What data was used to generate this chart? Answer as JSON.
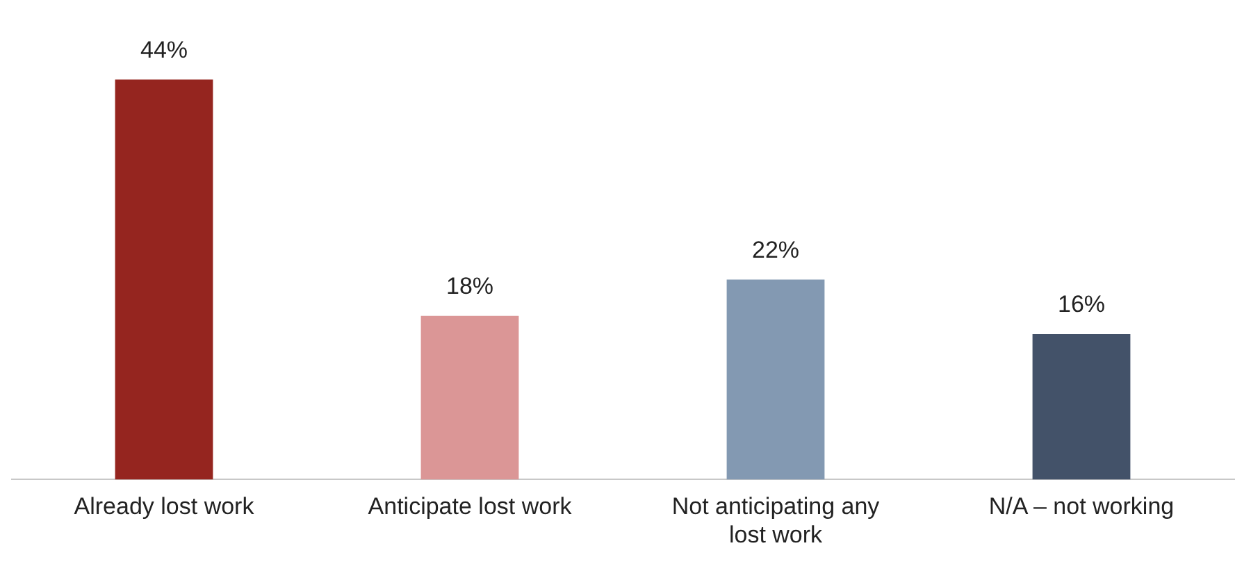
{
  "chart_data": {
    "type": "bar",
    "categories": [
      "Already lost work",
      "Anticipate lost work",
      "Not anticipating any lost work",
      "N/A – not working"
    ],
    "values": [
      44,
      18,
      22,
      16
    ],
    "colors": [
      "#95251f",
      "#db9696",
      "#8399b2",
      "#435269"
    ],
    "value_labels": [
      "44%",
      "18%",
      "22%",
      "16%"
    ],
    "grid": false,
    "legend": false
  }
}
